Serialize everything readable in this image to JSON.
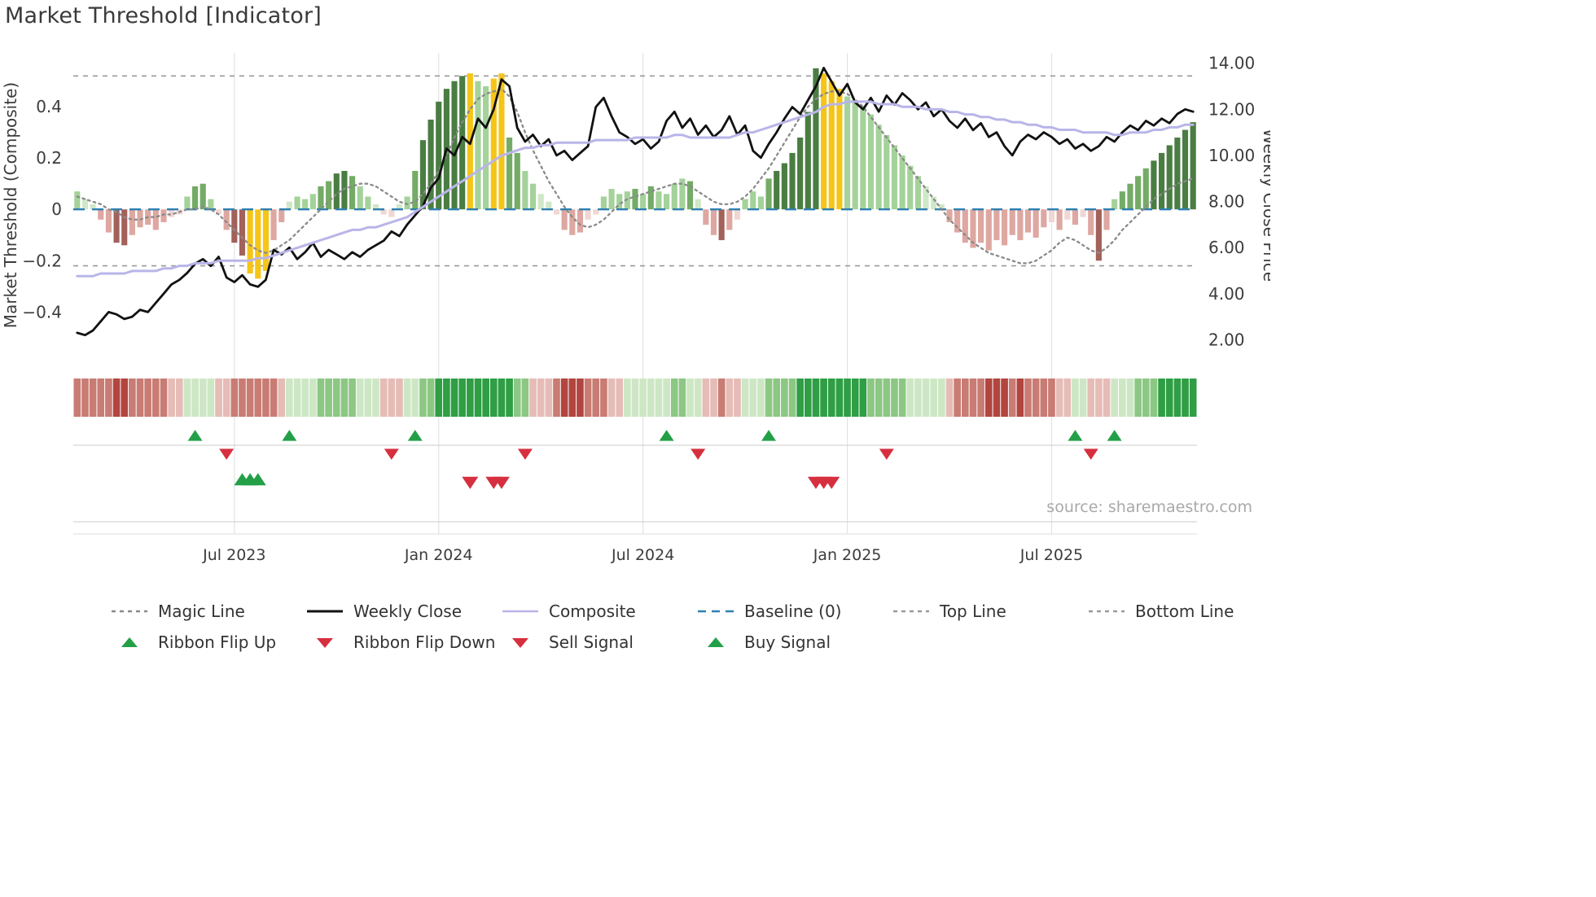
{
  "title": "Market Threshold [Indicator]",
  "source_text": "source: sharemaestro.com",
  "legend": {
    "rows": [
      [
        {
          "label": "Magic Line",
          "type": "line",
          "style": "dashed",
          "color": "#8a8a8a"
        },
        {
          "label": "Weekly Close",
          "type": "line",
          "style": "solid",
          "color": "#111111"
        },
        {
          "label": "Composite",
          "type": "line",
          "style": "solid",
          "color": "#b9b5e8"
        },
        {
          "label": "Baseline (0)",
          "type": "line",
          "style": "dashed-long",
          "color": "#2e7fb0"
        },
        {
          "label": "Top Line",
          "type": "line",
          "style": "dashed",
          "color": "#9a9a9a"
        },
        {
          "label": "Bottom Line",
          "type": "line",
          "style": "dashed",
          "color": "#9a9a9a"
        }
      ],
      [
        {
          "label": "Ribbon Flip Up",
          "type": "marker-up",
          "color": "#23a047"
        },
        {
          "label": "Ribbon Flip Down",
          "type": "marker-down",
          "color": "#d62f3f"
        },
        {
          "label": "Sell Signal",
          "type": "marker-down",
          "color": "#d62f3f"
        },
        {
          "label": "Buy Signal",
          "type": "marker-up",
          "color": "#23a047"
        }
      ]
    ]
  },
  "chart_data": {
    "type": "bar",
    "title": "Market Threshold [Indicator]",
    "n_weeks": 143,
    "x_ticks": [
      {
        "label": "Jul 2023",
        "week": 20
      },
      {
        "label": "Jan 2024",
        "week": 46
      },
      {
        "label": "Jul 2024",
        "week": 72
      },
      {
        "label": "Jan 2025",
        "week": 98
      },
      {
        "label": "Jul 2025",
        "week": 124
      }
    ],
    "left_axis": {
      "label": "Market Threshold (Composite)",
      "min": -0.58,
      "max": 0.61,
      "ticks": [
        {
          "v": 0.4,
          "label": "0.4"
        },
        {
          "v": 0.2,
          "label": "0.2"
        },
        {
          "v": 0.0,
          "label": "0"
        },
        {
          "v": -0.2,
          "label": "−0.2"
        },
        {
          "v": -0.4,
          "label": "−0.4"
        }
      ]
    },
    "right_axis": {
      "label": "Weekly Close Price",
      "min": 1.2,
      "max": 14.45,
      "ticks": [
        {
          "v": 14,
          "label": "14.00"
        },
        {
          "v": 12,
          "label": "12.00"
        },
        {
          "v": 10,
          "label": "10.00"
        },
        {
          "v": 8,
          "label": "8.00"
        },
        {
          "v": 6,
          "label": "6.00"
        },
        {
          "v": 4,
          "label": "4.00"
        },
        {
          "v": 2,
          "label": "2.00"
        }
      ]
    },
    "reference_lines": {
      "top_line": 0.52,
      "bottom_line": -0.22,
      "baseline": 0
    },
    "palette": {
      "G3": "#4a7d42",
      "G2": "#74ab66",
      "G1": "#a4d29a",
      "G0": "#cfe8c8",
      "Y": "#f5c517",
      "R0": "#f0d7d4",
      "R1": "#dea7a1",
      "R2": "#a2615a"
    },
    "bars": {
      "name": "Threshold Histogram",
      "values": [
        0.07,
        0.04,
        0.02,
        -0.04,
        -0.09,
        -0.13,
        -0.14,
        -0.1,
        -0.07,
        -0.06,
        -0.08,
        -0.05,
        -0.03,
        -0.02,
        0.05,
        0.09,
        0.1,
        0.04,
        -0.02,
        -0.08,
        -0.13,
        -0.18,
        -0.25,
        -0.27,
        -0.24,
        -0.12,
        -0.05,
        0.03,
        0.05,
        0.04,
        0.06,
        0.09,
        0.11,
        0.14,
        0.15,
        0.13,
        0.09,
        0.05,
        0.02,
        -0.02,
        -0.03,
        0.02,
        0.05,
        0.15,
        0.27,
        0.35,
        0.42,
        0.47,
        0.5,
        0.52,
        0.53,
        0.5,
        0.48,
        0.51,
        0.53,
        0.28,
        0.22,
        0.15,
        0.1,
        0.06,
        0.03,
        -0.02,
        -0.08,
        -0.1,
        -0.09,
        -0.04,
        -0.02,
        0.05,
        0.08,
        0.06,
        0.07,
        0.08,
        0.06,
        0.09,
        0.07,
        0.06,
        0.1,
        0.12,
        0.11,
        0.04,
        -0.06,
        -0.1,
        -0.12,
        -0.08,
        -0.04,
        0.04,
        0.07,
        0.05,
        0.12,
        0.15,
        0.18,
        0.22,
        0.28,
        0.38,
        0.55,
        0.53,
        0.5,
        0.47,
        0.44,
        0.42,
        0.4,
        0.37,
        0.33,
        0.29,
        0.25,
        0.21,
        0.17,
        0.13,
        0.09,
        0.05,
        0.02,
        -0.05,
        -0.09,
        -0.13,
        -0.15,
        -0.13,
        -0.16,
        -0.12,
        -0.14,
        -0.1,
        -0.12,
        -0.09,
        -0.11,
        -0.07,
        -0.05,
        -0.08,
        -0.04,
        -0.06,
        -0.03,
        -0.1,
        -0.2,
        -0.08,
        0.04,
        0.07,
        0.1,
        0.13,
        0.16,
        0.19,
        0.22,
        0.25,
        0.28,
        0.31,
        0.34
      ],
      "colors": [
        "G1",
        "G0",
        "G0",
        "R1",
        "R1",
        "R2",
        "R2",
        "R1",
        "R1",
        "R1",
        "R1",
        "R1",
        "R0",
        "R0",
        "G1",
        "G2",
        "G2",
        "G1",
        "R0",
        "R1",
        "R2",
        "R2",
        "Y",
        "Y",
        "Y",
        "R1",
        "R1",
        "G0",
        "G1",
        "G1",
        "G1",
        "G2",
        "G2",
        "G3",
        "G3",
        "G2",
        "G1",
        "G1",
        "G0",
        "R0",
        "R0",
        "G0",
        "G1",
        "G2",
        "G3",
        "G3",
        "G3",
        "G3",
        "G3",
        "G3",
        "Y",
        "G1",
        "G1",
        "Y",
        "Y",
        "G2",
        "G2",
        "G1",
        "G1",
        "G0",
        "G0",
        "R0",
        "R1",
        "R1",
        "R1",
        "R0",
        "R0",
        "G1",
        "G1",
        "G1",
        "G1",
        "G2",
        "G1",
        "G2",
        "G1",
        "G1",
        "G1",
        "G1",
        "G2",
        "G0",
        "R1",
        "R1",
        "R2",
        "R1",
        "R0",
        "G1",
        "G1",
        "G1",
        "G2",
        "G3",
        "G3",
        "G3",
        "G3",
        "G3",
        "G3",
        "Y",
        "Y",
        "Y",
        "G1",
        "G1",
        "G1",
        "G1",
        "G1",
        "G1",
        "G1",
        "G1",
        "G1",
        "G1",
        "G0",
        "G0",
        "G0",
        "R1",
        "R1",
        "R1",
        "R1",
        "R1",
        "R1",
        "R1",
        "R1",
        "R1",
        "R1",
        "R1",
        "R1",
        "R1",
        "R0",
        "R1",
        "R0",
        "R1",
        "R0",
        "R1",
        "R2",
        "R1",
        "G1",
        "G2",
        "G2",
        "G2",
        "G2",
        "G3",
        "G3",
        "G3",
        "G3",
        "G3",
        "G3"
      ]
    },
    "series": [
      {
        "name": "Magic Line",
        "axis": "left",
        "style": "dotted",
        "color": "#8a8a8a",
        "values": [
          0.05,
          0.04,
          0.03,
          0.02,
          0.0,
          -0.01,
          -0.03,
          -0.04,
          -0.04,
          -0.03,
          -0.03,
          -0.02,
          -0.02,
          -0.01,
          0.0,
          0.0,
          0.01,
          0.0,
          -0.02,
          -0.05,
          -0.08,
          -0.11,
          -0.14,
          -0.16,
          -0.17,
          -0.16,
          -0.14,
          -0.12,
          -0.09,
          -0.06,
          -0.03,
          0.0,
          0.03,
          0.06,
          0.08,
          0.09,
          0.1,
          0.1,
          0.09,
          0.07,
          0.05,
          0.03,
          0.02,
          0.03,
          0.06,
          0.1,
          0.15,
          0.21,
          0.28,
          0.34,
          0.39,
          0.43,
          0.45,
          0.46,
          0.47,
          0.44,
          0.38,
          0.3,
          0.23,
          0.17,
          0.11,
          0.06,
          0.01,
          -0.03,
          -0.06,
          -0.07,
          -0.06,
          -0.04,
          -0.01,
          0.02,
          0.04,
          0.05,
          0.06,
          0.07,
          0.08,
          0.09,
          0.1,
          0.1,
          0.09,
          0.07,
          0.05,
          0.03,
          0.02,
          0.02,
          0.03,
          0.05,
          0.08,
          0.12,
          0.16,
          0.21,
          0.26,
          0.31,
          0.36,
          0.4,
          0.43,
          0.45,
          0.46,
          0.46,
          0.45,
          0.43,
          0.4,
          0.36,
          0.32,
          0.28,
          0.24,
          0.2,
          0.16,
          0.12,
          0.08,
          0.04,
          0.0,
          -0.04,
          -0.07,
          -0.1,
          -0.13,
          -0.15,
          -0.17,
          -0.18,
          -0.19,
          -0.2,
          -0.21,
          -0.21,
          -0.2,
          -0.18,
          -0.16,
          -0.13,
          -0.11,
          -0.12,
          -0.14,
          -0.16,
          -0.17,
          -0.15,
          -0.12,
          -0.08,
          -0.05,
          -0.02,
          0.01,
          0.04,
          0.06,
          0.08,
          0.1,
          0.11,
          0.12
        ]
      },
      {
        "name": "Weekly Close",
        "axis": "right",
        "style": "solid",
        "color": "#111111",
        "values": [
          2.3,
          2.2,
          2.4,
          2.8,
          3.2,
          3.1,
          2.9,
          3.0,
          3.3,
          3.2,
          3.6,
          4.0,
          4.4,
          4.6,
          4.9,
          5.3,
          5.5,
          5.2,
          5.6,
          4.7,
          4.5,
          4.8,
          4.4,
          4.3,
          4.6,
          5.9,
          5.7,
          6.0,
          5.5,
          5.8,
          6.2,
          5.6,
          5.9,
          5.7,
          5.5,
          5.8,
          5.6,
          5.9,
          6.1,
          6.3,
          6.7,
          6.5,
          7.0,
          7.4,
          7.8,
          8.6,
          9.0,
          10.3,
          10.0,
          10.8,
          10.5,
          11.6,
          11.2,
          12.0,
          13.3,
          13.0,
          11.2,
          10.6,
          10.9,
          10.4,
          10.7,
          10.0,
          10.2,
          9.8,
          10.1,
          10.4,
          12.1,
          12.5,
          11.7,
          11.0,
          10.8,
          10.5,
          10.7,
          10.3,
          10.6,
          11.5,
          11.9,
          11.2,
          11.6,
          10.9,
          11.3,
          10.8,
          11.1,
          11.7,
          10.9,
          11.3,
          10.2,
          9.9,
          10.5,
          11.0,
          11.6,
          12.1,
          11.8,
          12.4,
          13.0,
          13.8,
          13.2,
          12.6,
          13.1,
          12.3,
          12.0,
          12.5,
          11.9,
          12.6,
          12.2,
          12.7,
          12.4,
          12.0,
          12.3,
          11.7,
          12.0,
          11.5,
          11.2,
          11.6,
          11.1,
          11.4,
          10.8,
          11.0,
          10.4,
          10.0,
          10.6,
          10.9,
          10.7,
          11.0,
          10.8,
          10.5,
          10.7,
          10.3,
          10.5,
          10.2,
          10.4,
          10.8,
          10.6,
          11.0,
          11.3,
          11.1,
          11.5,
          11.3,
          11.6,
          11.4,
          11.8,
          12.0,
          11.9
        ]
      },
      {
        "name": "Composite",
        "axis": "left",
        "style": "solid",
        "color": "#b9b5e8",
        "values": [
          -0.26,
          -0.26,
          -0.26,
          -0.25,
          -0.25,
          -0.25,
          -0.25,
          -0.24,
          -0.24,
          -0.24,
          -0.24,
          -0.23,
          -0.23,
          -0.22,
          -0.22,
          -0.21,
          -0.21,
          -0.21,
          -0.2,
          -0.2,
          -0.2,
          -0.2,
          -0.2,
          -0.19,
          -0.19,
          -0.18,
          -0.17,
          -0.16,
          -0.15,
          -0.14,
          -0.13,
          -0.12,
          -0.11,
          -0.1,
          -0.09,
          -0.08,
          -0.08,
          -0.07,
          -0.07,
          -0.06,
          -0.05,
          -0.04,
          -0.03,
          -0.01,
          0.01,
          0.03,
          0.05,
          0.07,
          0.09,
          0.11,
          0.13,
          0.15,
          0.17,
          0.19,
          0.21,
          0.22,
          0.23,
          0.24,
          0.24,
          0.25,
          0.25,
          0.26,
          0.26,
          0.26,
          0.26,
          0.26,
          0.27,
          0.27,
          0.27,
          0.27,
          0.27,
          0.28,
          0.28,
          0.28,
          0.28,
          0.28,
          0.29,
          0.29,
          0.28,
          0.28,
          0.28,
          0.28,
          0.28,
          0.28,
          0.29,
          0.3,
          0.3,
          0.31,
          0.32,
          0.33,
          0.34,
          0.35,
          0.36,
          0.37,
          0.38,
          0.4,
          0.41,
          0.41,
          0.42,
          0.42,
          0.42,
          0.42,
          0.41,
          0.41,
          0.41,
          0.4,
          0.4,
          0.4,
          0.39,
          0.39,
          0.39,
          0.38,
          0.38,
          0.37,
          0.37,
          0.36,
          0.36,
          0.35,
          0.35,
          0.34,
          0.34,
          0.33,
          0.33,
          0.32,
          0.32,
          0.31,
          0.31,
          0.31,
          0.3,
          0.3,
          0.3,
          0.3,
          0.29,
          0.29,
          0.3,
          0.3,
          0.3,
          0.31,
          0.31,
          0.32,
          0.32,
          0.33,
          0.33
        ]
      }
    ],
    "ribbon": {
      "levels": [
        -2,
        -2,
        -2,
        -2,
        -2,
        -3,
        -3,
        -2,
        -2,
        -2,
        -2,
        -2,
        -1,
        -1,
        1,
        1,
        1,
        1,
        -1,
        -1,
        -2,
        -2,
        -2,
        -2,
        -2,
        -2,
        -1,
        1,
        1,
        1,
        1,
        2,
        2,
        2,
        2,
        2,
        1,
        1,
        1,
        -1,
        -1,
        -1,
        1,
        1,
        2,
        2,
        3,
        3,
        3,
        3,
        3,
        3,
        3,
        3,
        3,
        3,
        2,
        2,
        -1,
        -1,
        -1,
        -2,
        -3,
        -3,
        -3,
        -2,
        -2,
        -2,
        -1,
        -1,
        1,
        1,
        1,
        1,
        1,
        1,
        2,
        2,
        1,
        1,
        -1,
        -1,
        -2,
        -1,
        -1,
        1,
        1,
        1,
        2,
        2,
        2,
        2,
        3,
        3,
        3,
        3,
        3,
        3,
        3,
        3,
        3,
        2,
        2,
        2,
        2,
        2,
        1,
        1,
        1,
        1,
        1,
        -1,
        -2,
        -2,
        -2,
        -2,
        -3,
        -3,
        -3,
        -2,
        -3,
        -2,
        -2,
        -2,
        -2,
        -1,
        -1,
        1,
        1,
        -1,
        -1,
        -1,
        1,
        1,
        1,
        2,
        2,
        2,
        3,
        3,
        3,
        3,
        3
      ],
      "colors": {
        "-3": "#b2453f",
        "-2": "#c97c74",
        "-1": "#e6bcb7",
        "1": "#cde7c5",
        "2": "#8cc784",
        "3": "#2f9e45"
      }
    },
    "signals": {
      "ribbon_flip_up": [
        15,
        27,
        43,
        75,
        88,
        127,
        132
      ],
      "ribbon_flip_down": [
        19,
        40,
        57,
        79,
        103,
        129
      ],
      "buy": [
        21,
        22,
        23
      ],
      "sell": [
        50,
        53,
        54,
        94,
        95,
        96
      ]
    },
    "colors": {
      "weekly_close": "#111111",
      "composite": "#b9b5e8",
      "magic_line": "#8a8a8a",
      "baseline": "#2e7fb0",
      "top_line": "#9a9a9a",
      "bottom_line": "#9a9a9a",
      "flip_up": "#23a047",
      "flip_down": "#d62f3f",
      "buy": "#23a047",
      "sell": "#d62f3f",
      "grid": "#e3e3e3",
      "signal_row_line": "#cccccc",
      "axis_text": "#3c3c3c"
    }
  }
}
